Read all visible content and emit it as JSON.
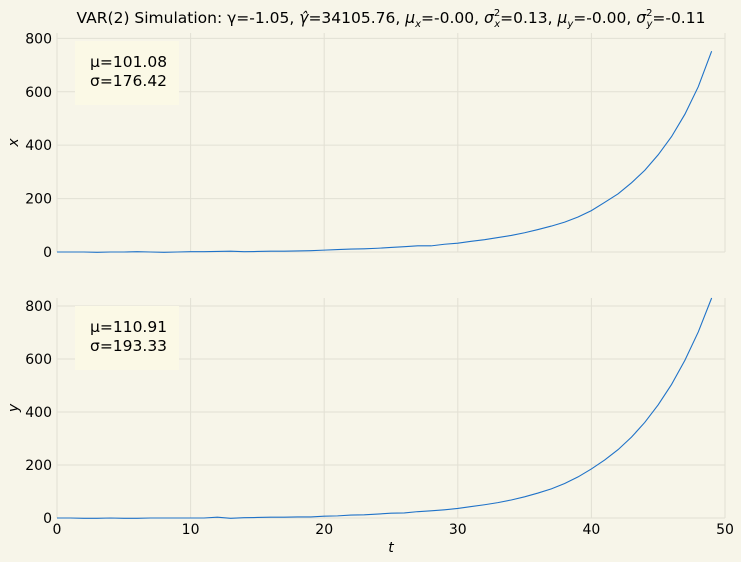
{
  "title_parts": {
    "prefix": "VAR(2) Simulation: γ=-1.05, ",
    "gammahat_value": "=34105.76, ",
    "mux_value": "=-0.00, ",
    "sigx_value": "=0.13, ",
    "muy_value": "=-0.00, ",
    "sigy_value": "=-0.11"
  },
  "chart_data": [
    {
      "type": "line",
      "ylabel": "x",
      "xlabel": "",
      "xlim": [
        0,
        50
      ],
      "ylim": [
        0,
        820
      ],
      "xticks": [
        "0",
        "10",
        "20",
        "30",
        "40",
        "50"
      ],
      "yticks": [
        0,
        200,
        400,
        600,
        800
      ],
      "grid": true,
      "stats": {
        "mu": "μ=101.08",
        "sigma": "σ=176.42"
      },
      "x": [
        0,
        1,
        2,
        3,
        4,
        5,
        6,
        7,
        8,
        9,
        10,
        11,
        12,
        13,
        14,
        15,
        16,
        17,
        18,
        19,
        20,
        21,
        22,
        23,
        24,
        25,
        26,
        27,
        28,
        29,
        30,
        31,
        32,
        33,
        34,
        35,
        36,
        37,
        38,
        39,
        40,
        41,
        42,
        43,
        44,
        45,
        46,
        47,
        48,
        49
      ],
      "series": [
        {
          "values": [
            0,
            0,
            0,
            -1,
            0,
            0,
            1,
            0,
            -1,
            0,
            1,
            1,
            2,
            3,
            1,
            2,
            3,
            3,
            4,
            5,
            7,
            9,
            11,
            12,
            14,
            17,
            20,
            23,
            23,
            29,
            33,
            40,
            46,
            54,
            62,
            72,
            84,
            97,
            112,
            131,
            155,
            186,
            218,
            259,
            306,
            364,
            432,
            516,
            619,
            752
          ]
        }
      ]
    },
    {
      "type": "line",
      "ylabel": "y",
      "xlabel": "t",
      "xlim": [
        0,
        50
      ],
      "ylim": [
        0,
        830
      ],
      "xticks": [
        "0",
        "10",
        "20",
        "30",
        "40",
        "50"
      ],
      "yticks": [
        0,
        200,
        400,
        600,
        800
      ],
      "grid": true,
      "stats": {
        "mu": "μ=110.91",
        "sigma": "σ=193.33"
      },
      "x": [
        0,
        1,
        2,
        3,
        4,
        5,
        6,
        7,
        8,
        9,
        10,
        11,
        12,
        13,
        14,
        15,
        16,
        17,
        18,
        19,
        20,
        21,
        22,
        23,
        24,
        25,
        26,
        27,
        28,
        29,
        30,
        31,
        32,
        33,
        34,
        35,
        36,
        37,
        38,
        39,
        40,
        41,
        42,
        43,
        44,
        45,
        46,
        47,
        48,
        49
      ],
      "series": [
        {
          "values": [
            0,
            0,
            -1,
            -1,
            0,
            -1,
            -1,
            0,
            0,
            0,
            0,
            0,
            3,
            -1,
            1,
            2,
            3,
            3,
            4,
            4,
            7,
            8,
            11,
            12,
            15,
            18,
            19,
            24,
            27,
            31,
            36,
            43,
            50,
            58,
            68,
            80,
            94,
            110,
            130,
            155,
            185,
            219,
            258,
            305,
            361,
            427,
            504,
            595,
            702,
            830
          ]
        }
      ]
    }
  ]
}
